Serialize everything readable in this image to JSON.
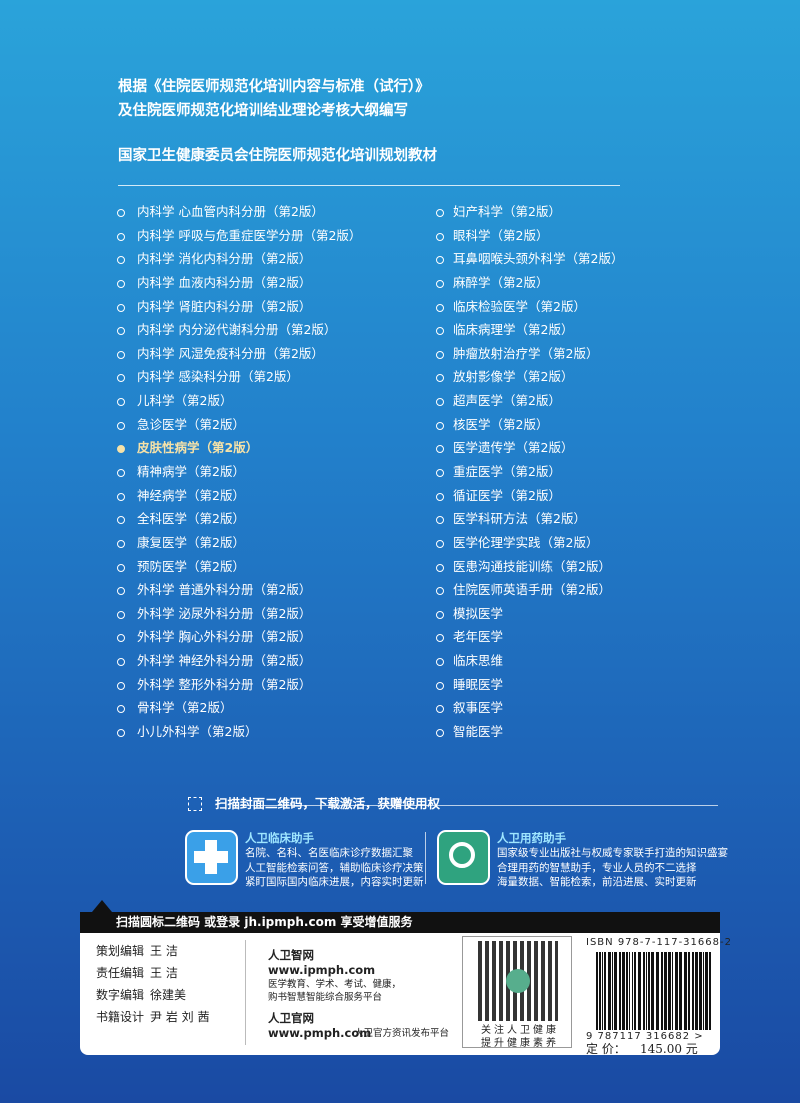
{
  "header": {
    "lines": [
      "根据《住院医师规范化培训内容与标准（试行）》",
      "及住院医师规范化培训结业理论考核大纲编写"
    ],
    "series_title": "国家卫生健康委员会住院医师规范化培训规划教材"
  },
  "books": {
    "left": [
      "内科学 心血管内科分册（第2版）",
      "内科学 呼吸与危重症医学分册（第2版）",
      "内科学 消化内科分册（第2版）",
      "内科学 血液内科分册（第2版）",
      "内科学 肾脏内科分册（第2版）",
      "内科学 内分泌代谢科分册（第2版）",
      "内科学 风湿免疫科分册（第2版）",
      "内科学 感染科分册（第2版）",
      "儿科学（第2版）",
      "急诊医学（第2版）",
      "皮肤性病学（第2版）",
      "精神病学（第2版）",
      "神经病学（第2版）",
      "全科医学（第2版）",
      "康复医学（第2版）",
      "预防医学（第2版）",
      "外科学 普通外科分册（第2版）",
      "外科学 泌尿外科分册（第2版）",
      "外科学 胸心外科分册（第2版）",
      "外科学 神经外科分册（第2版）",
      "外科学 整形外科分册（第2版）",
      "骨科学（第2版）",
      "小儿外科学（第2版）"
    ],
    "right": [
      "妇产科学（第2版）",
      "眼科学（第2版）",
      "耳鼻咽喉头颈外科学（第2版）",
      "麻醉学（第2版）",
      "临床检验医学（第2版）",
      "临床病理学（第2版）",
      "肿瘤放射治疗学（第2版）",
      "放射影像学（第2版）",
      "超声医学（第2版）",
      "核医学（第2版）",
      "医学遗传学（第2版）",
      "重症医学（第2版）",
      "循证医学（第2版）",
      "医学科研方法（第2版）",
      "医学伦理学实践（第2版）",
      "医患沟通技能训练（第2版）",
      "住院医师英语手册（第2版）",
      "模拟医学",
      "老年医学",
      "临床思维",
      "睡眠医学",
      "叙事医学",
      "智能医学"
    ]
  },
  "promo": {
    "banner": "扫描封面二维码，下载激活，获赠使用权",
    "apps": [
      {
        "name": "人卫临床助手",
        "lines": [
          "名院、名科、名医临床诊疗数据汇聚",
          "人工智能检索问答，辅助临床诊疗决策",
          "紧盯国际国内临床进展，内容实时更新"
        ]
      },
      {
        "name": "人卫用药助手",
        "lines": [
          "国家级专业出版社与权威专家联手打造的知识盛宴",
          "合理用药的智慧助手，专业人员的不二选择",
          "海量数据、智能检索，前沿进展、实时更新"
        ]
      }
    ]
  },
  "footer": {
    "bar": "扫描圆标二维码 或登录 jh.ipmph.com 享受增值服务",
    "credits": [
      {
        "role": "策划编辑",
        "name": "王 洁"
      },
      {
        "role": "责任编辑",
        "name": "王 洁"
      },
      {
        "role": "数字编辑",
        "name": "徐建美"
      },
      {
        "role": "书籍设计",
        "name": "尹 岩 刘 茜"
      }
    ],
    "sites": [
      {
        "name": "人卫智网",
        "url": "www.ipmph.com",
        "lines": [
          "医学教育、学术、考试、健康，",
          "购书智慧智能综合服务平台"
        ]
      },
      {
        "name": "人卫官网",
        "url": "www.pmph.com",
        "lines": [
          "人卫官方资讯发布平台"
        ]
      }
    ],
    "qr_caption": [
      "关注人卫健康",
      "提升健康素养"
    ],
    "isbn": "ISBN 978-7-117-31668-2",
    "barcode_digits": "9 787117 316682 >",
    "price_label": "定 价：",
    "price": "145.00 元"
  }
}
